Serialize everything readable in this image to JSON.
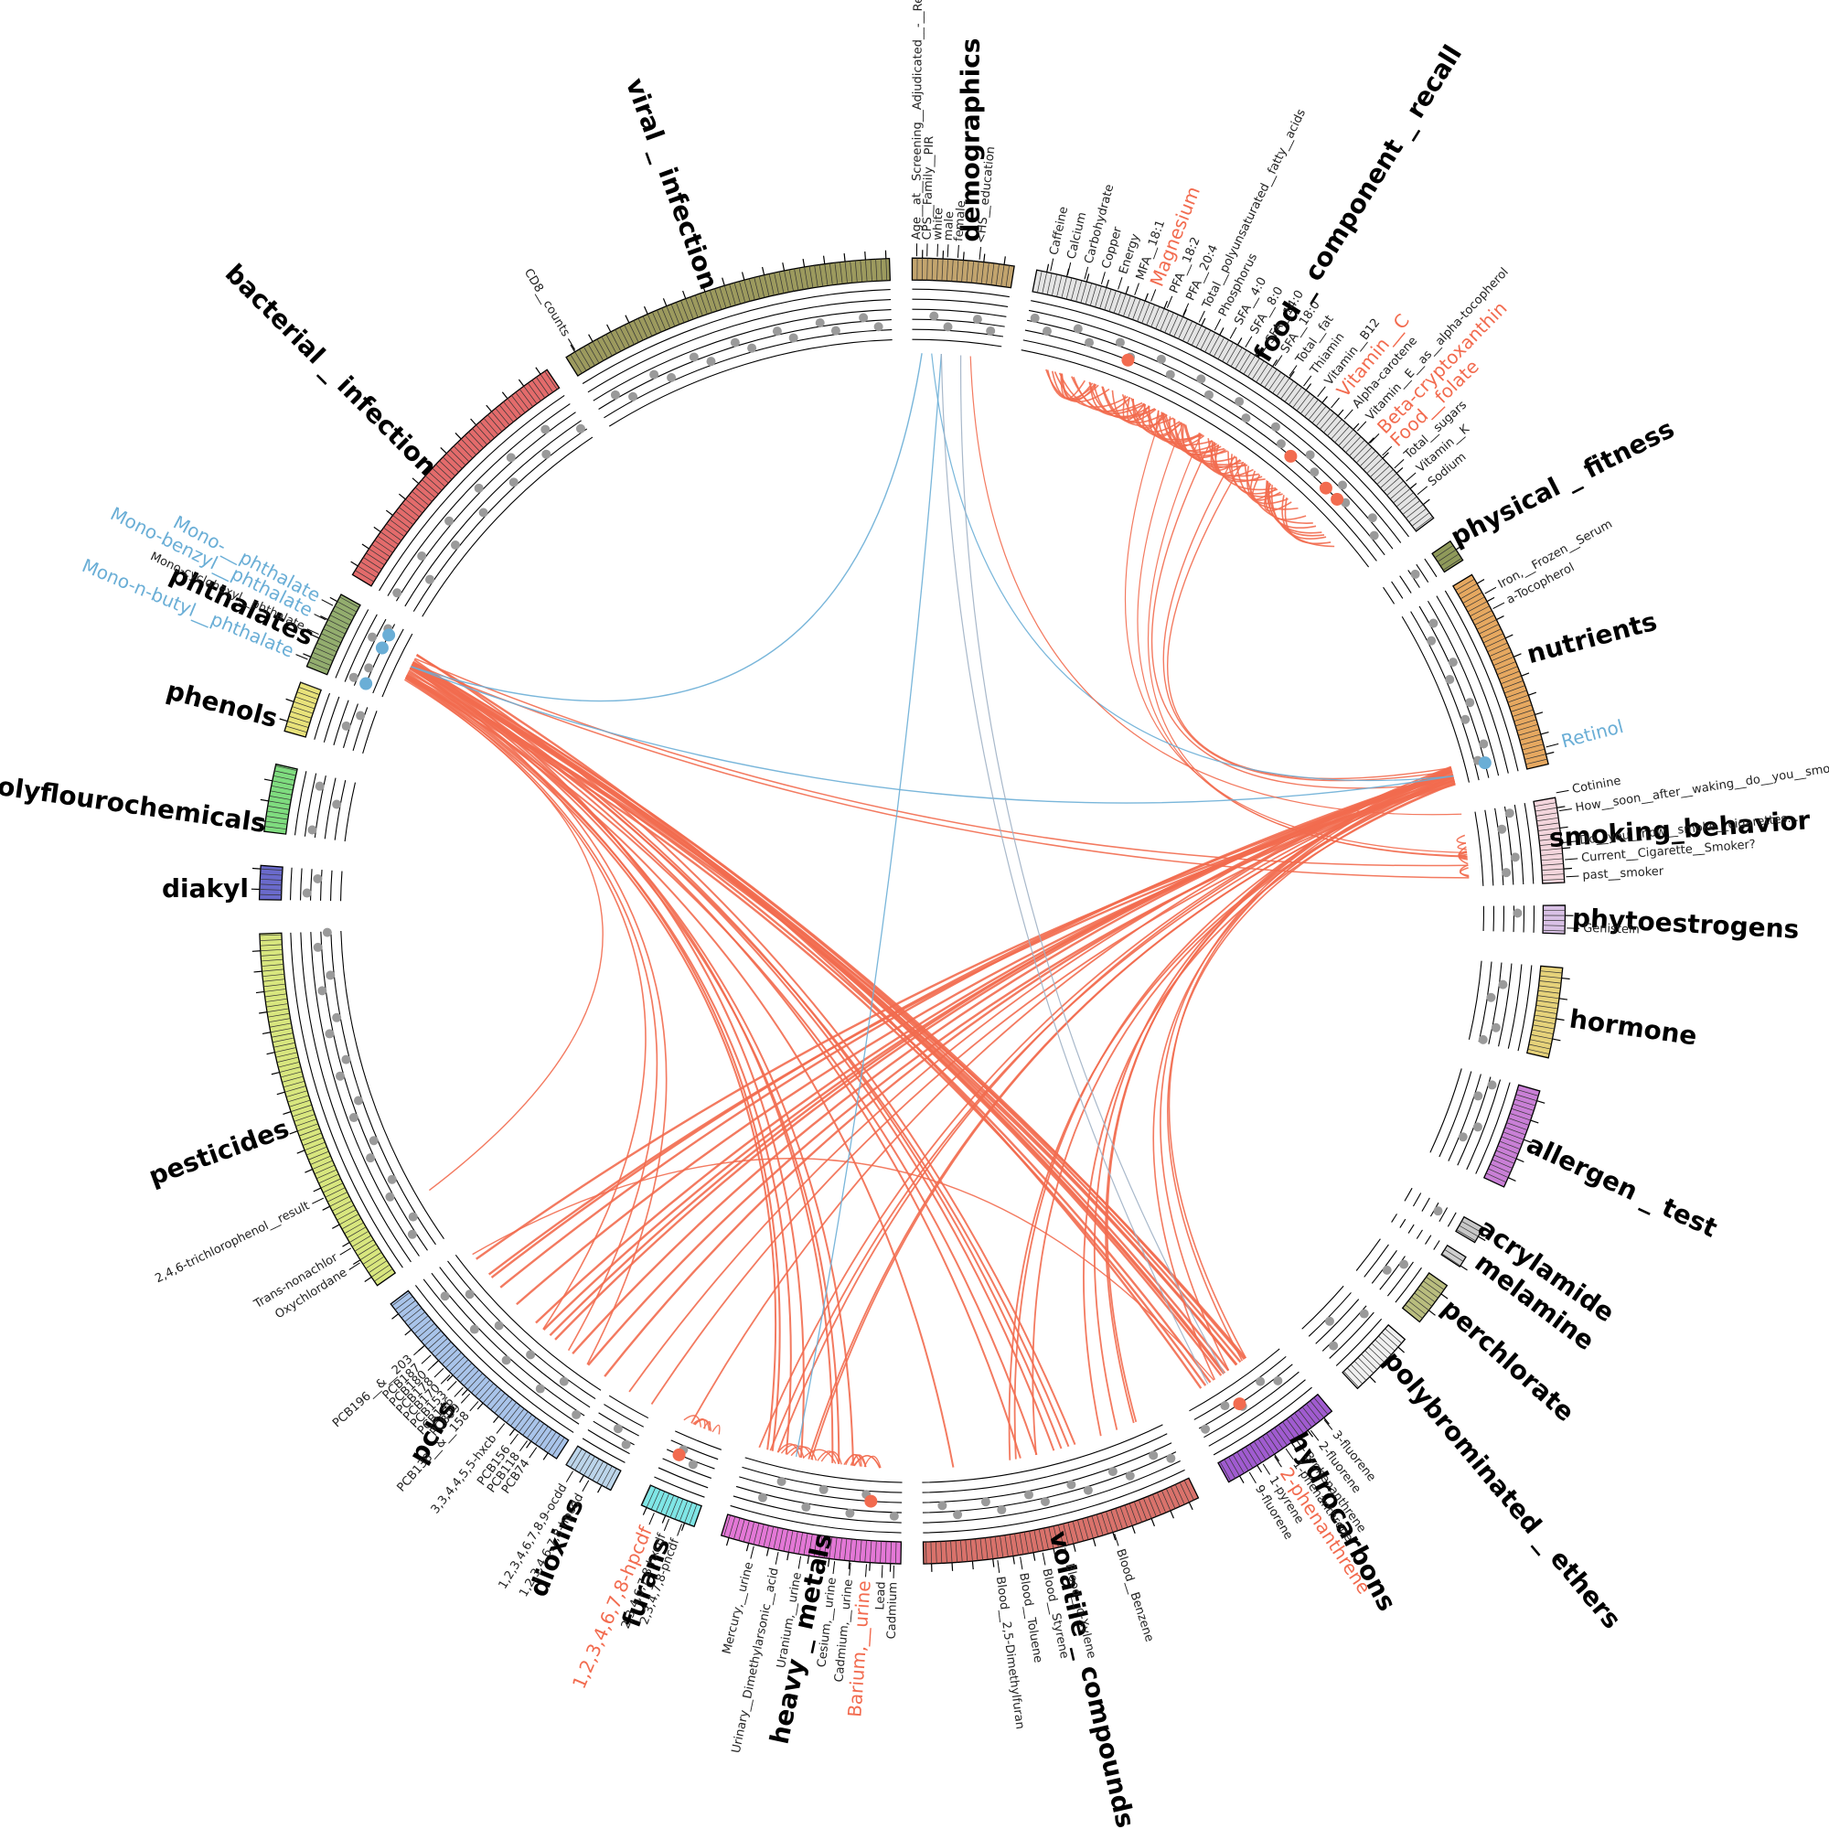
{
  "groups": [
    {
      "name": "demographics",
      "color": "#c2a46e",
      "variables": [
        {
          "label": "Age__at__Screening__Adjudicated__-__Reco"
        },
        {
          "label": "CPS__Family__PIR"
        },
        {
          "label": "white"
        },
        {
          "label": "male"
        },
        {
          "label": "female"
        },
        {
          "label": "<HS__education"
        }
      ]
    },
    {
      "name": "food _ component _ recall",
      "color": "#e4e4e4",
      "variables": [
        {
          "label": "Caffeine"
        },
        {
          "label": "Calcium"
        },
        {
          "label": "Carbohydrate"
        },
        {
          "label": "Copper"
        },
        {
          "label": "Energy"
        },
        {
          "label": "MFA__18:1"
        },
        {
          "label": "Magnesium",
          "color": "#f26b4f"
        },
        {
          "label": "PFA__18:2"
        },
        {
          "label": "PFA__20:4"
        },
        {
          "label": "Total__polyunsaturated__fatty__acids"
        },
        {
          "label": "Phosphorus"
        },
        {
          "label": "SFA__4:0"
        },
        {
          "label": "SFA__8:0"
        },
        {
          "label": "SFA__14:0"
        },
        {
          "label": "SFA__18:0"
        },
        {
          "label": "Total__fat"
        },
        {
          "label": "Thiamin"
        },
        {
          "label": "Vitamin__B12"
        },
        {
          "label": "Vitamin__C",
          "color": "#f26b4f"
        },
        {
          "label": "Alpha-carotene"
        },
        {
          "label": "Vitamin__E__as__alpha-tocopherol"
        },
        {
          "label": "Beta-cryptoxanthin",
          "color": "#f26b4f"
        },
        {
          "label": "Food__folate",
          "color": "#f26b4f"
        },
        {
          "label": "Total__sugars"
        },
        {
          "label": "Vitamin__K"
        },
        {
          "label": "Sodium"
        }
      ]
    },
    {
      "name": "physical _ fitness",
      "color": "#8f9a5a",
      "variables": []
    },
    {
      "name": "nutrients",
      "color": "#e6a860",
      "variables": [
        {
          "label": "Iron,__Frozen__Serum"
        },
        {
          "label": "a-Tocopherol"
        },
        {
          "label": "Retinol",
          "color": "#6aaed6"
        }
      ]
    },
    {
      "name": "smoking_behavior",
      "color": "#f3d5dc",
      "variables": [
        {
          "label": "Cotinine"
        },
        {
          "label": "How__soon__after__waking__do__you__smoke"
        },
        {
          "label": "Do__you__now__smoke__cigarettes..."
        },
        {
          "label": "Current__Cigarette__Smoker?"
        },
        {
          "label": "past__smoker"
        }
      ]
    },
    {
      "name": "phytoestrogens",
      "color": "#d9c1e6",
      "variables": [
        {
          "label": "Genistein"
        }
      ]
    },
    {
      "name": "hormone",
      "color": "#e6d27a",
      "variables": []
    },
    {
      "name": "allergen _ test",
      "color": "#c97fd6",
      "variables": []
    },
    {
      "name": "acrylamide",
      "color": "#c8c8c8",
      "variables": []
    },
    {
      "name": "melamine",
      "color": "#cfcfcf",
      "variables": []
    },
    {
      "name": "perchlorate",
      "color": "#b9bd7e",
      "variables": []
    },
    {
      "name": "polybrominated _ ethers",
      "color": "#f0f0f0",
      "variables": []
    },
    {
      "name": "hydrocarbons",
      "color": "#a05bd0",
      "variables": [
        {
          "label": "3-fluorene"
        },
        {
          "label": "2-fluorene"
        },
        {
          "label": "3-phenanthrene"
        },
        {
          "label": "1-phenanthrene"
        },
        {
          "label": "2-phenanthrene",
          "color": "#f26b4f"
        },
        {
          "label": "1-pyrene"
        },
        {
          "label": "9-fluorene"
        }
      ]
    },
    {
      "name": "volatile _ compounds",
      "color": "#d9726b",
      "variables": [
        {
          "label": "Blood__Benzene"
        },
        {
          "label": "Blood__o-Xylene"
        },
        {
          "label": "Blood__Styrene"
        },
        {
          "label": "Blood__Toluene"
        },
        {
          "label": "Blood__2,5-Dimethylfuran"
        }
      ]
    },
    {
      "name": "heavy _ metals",
      "color": "#e377d6",
      "variables": [
        {
          "label": "Cadmium"
        },
        {
          "label": "Lead"
        },
        {
          "label": "Barium,__urine",
          "color": "#f26b4f"
        },
        {
          "label": "Cadmium,__urine"
        },
        {
          "label": "Cesium,__urine"
        },
        {
          "label": "Uranium,__urine"
        },
        {
          "label": "Urinary__Dimethylarsonic__acid"
        },
        {
          "label": "Mercury,__urine"
        }
      ]
    },
    {
      "name": "furans",
      "color": "#7fe6e6",
      "variables": [
        {
          "label": "2,3,4,7,8-pncdf"
        },
        {
          "label": "2,3,4,6,7,8-hxcdf"
        },
        {
          "label": "1,2,3,4,6,7,8-hpcdf",
          "color": "#f26b4f"
        }
      ]
    },
    {
      "name": "dioxins",
      "color": "#bcd5ea",
      "variables": [
        {
          "label": "1,2,3,4,6,7,8-hpcdd"
        },
        {
          "label": "1,2,3,4,6,7,8,9-ocdd"
        }
      ]
    },
    {
      "name": "pcbs",
      "color": "#a9c4ea",
      "variables": [
        {
          "label": "PCB74"
        },
        {
          "label": "PCB118"
        },
        {
          "label": "PCB156"
        },
        {
          "label": "3,3,4,4,5,5-hxcb"
        },
        {
          "label": "PCB138__&__158"
        },
        {
          "label": "PCB99"
        },
        {
          "label": "PCB146"
        },
        {
          "label": "PCB153"
        },
        {
          "label": "PCB170"
        },
        {
          "label": "PCB178"
        },
        {
          "label": "PCB180"
        },
        {
          "label": "PCB187"
        },
        {
          "label": "PCB196__&__203"
        }
      ]
    },
    {
      "name": "pesticides",
      "color": "#d8e67e",
      "variables": [
        {
          "label": "Oxychlordane"
        },
        {
          "label": "Trans-nonachlor"
        },
        {
          "label": "2,4,6-trichlorophenol__result"
        }
      ]
    },
    {
      "name": "diakyl",
      "color": "#6a6acb",
      "variables": []
    },
    {
      "name": "polyflourochemicals",
      "color": "#7fdc7f",
      "variables": []
    },
    {
      "name": "phenols",
      "color": "#e8e27a",
      "variables": []
    },
    {
      "name": "phthalates",
      "color": "#93ad6e",
      "variables": [
        {
          "label": "Mono-n-butyl__phthalate",
          "color": "#6aaed6"
        },
        {
          "label": "Mono-cyclohexyl__phthalate"
        },
        {
          "label": "Mono-benzyl__phthalate",
          "color": "#6aaed6"
        },
        {
          "label": "Mono-__phthalate",
          "color": "#6aaed6"
        }
      ]
    },
    {
      "name": "bacterial _ infection",
      "color": "#e36b6b",
      "variables": []
    },
    {
      "name": "viral _ infection",
      "color": "#9c9a5e",
      "variables": [
        {
          "label": "CD8__counts"
        }
      ]
    }
  ]
}
